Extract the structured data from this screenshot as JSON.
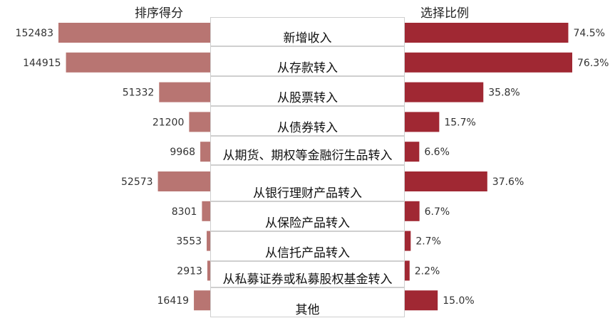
{
  "chart_data": {
    "type": "bar",
    "left_header": "排序得分",
    "right_header": "选择比例",
    "categories": [
      "新增收入",
      "从存款转入",
      "从股票转入",
      "从债券转入",
      "从期货、期权等金融衍生品转入",
      "从银行理财产品转入",
      "从保险产品转入",
      "从信托产品转入",
      "从私募证券或私募股权基金转入",
      "其他"
    ],
    "series": [
      {
        "values": [
          152483,
          144915,
          51332,
          21200,
          9968,
          52573,
          8301,
          3553,
          2913,
          16419
        ],
        "labels": [
          "152483",
          "144915",
          "51332",
          "21200",
          "9968",
          "52573",
          "8301",
          "3553",
          "2913",
          "16419"
        ],
        "color": "#b87572"
      },
      {
        "values": [
          74.5,
          76.3,
          35.8,
          15.7,
          6.6,
          37.6,
          6.7,
          2.7,
          2.2,
          15.0
        ],
        "labels": [
          "74.5%",
          "76.3%",
          "35.8%",
          "15.7%",
          "6.6%",
          "37.6%",
          "6.7%",
          "2.7%",
          "2.2%",
          "15.0%"
        ],
        "color": "#a02833"
      }
    ]
  }
}
